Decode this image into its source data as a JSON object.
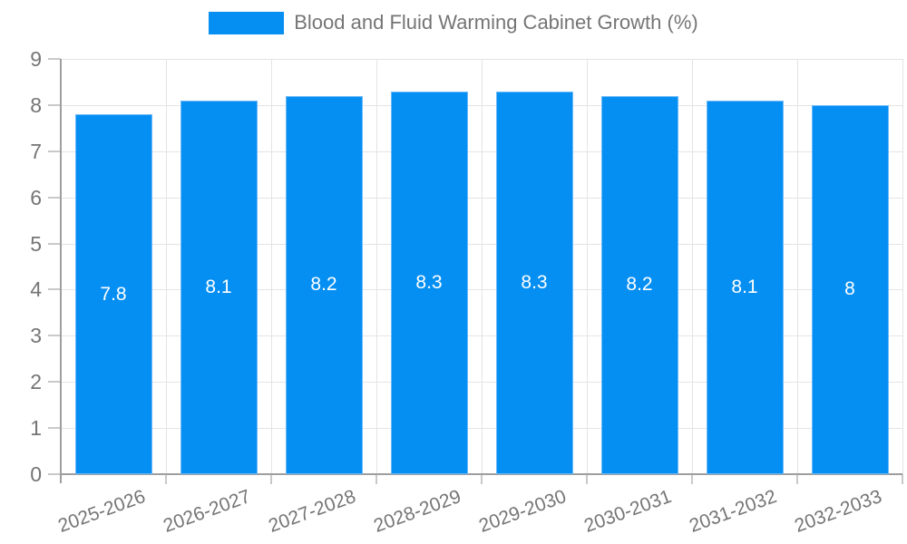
{
  "chart_data": {
    "type": "bar",
    "title": "",
    "categories": [
      "2025-2026",
      "2026-2027",
      "2027-2028",
      "2028-2029",
      "2029-2030",
      "2030-2031",
      "2031-2032",
      "2032-2033"
    ],
    "series": [
      {
        "name": "Blood and Fluid Warming Cabinet Growth (%)",
        "values": [
          7.8,
          8.1,
          8.2,
          8.3,
          8.3,
          8.2,
          8.1,
          8
        ]
      }
    ],
    "xlabel": "",
    "ylabel": "",
    "ylim": [
      0,
      9
    ],
    "ytick_step": 1,
    "grid": "on",
    "legend_position": "top-center",
    "value_labels": "inside-center",
    "colors": {
      "bar": "#068ff2",
      "grid": "#e4e4e4",
      "axis": "#9e9e9e",
      "tick": "#c9c9c9",
      "axis_text": "#757575",
      "value_label_text": "#ffffff"
    }
  }
}
